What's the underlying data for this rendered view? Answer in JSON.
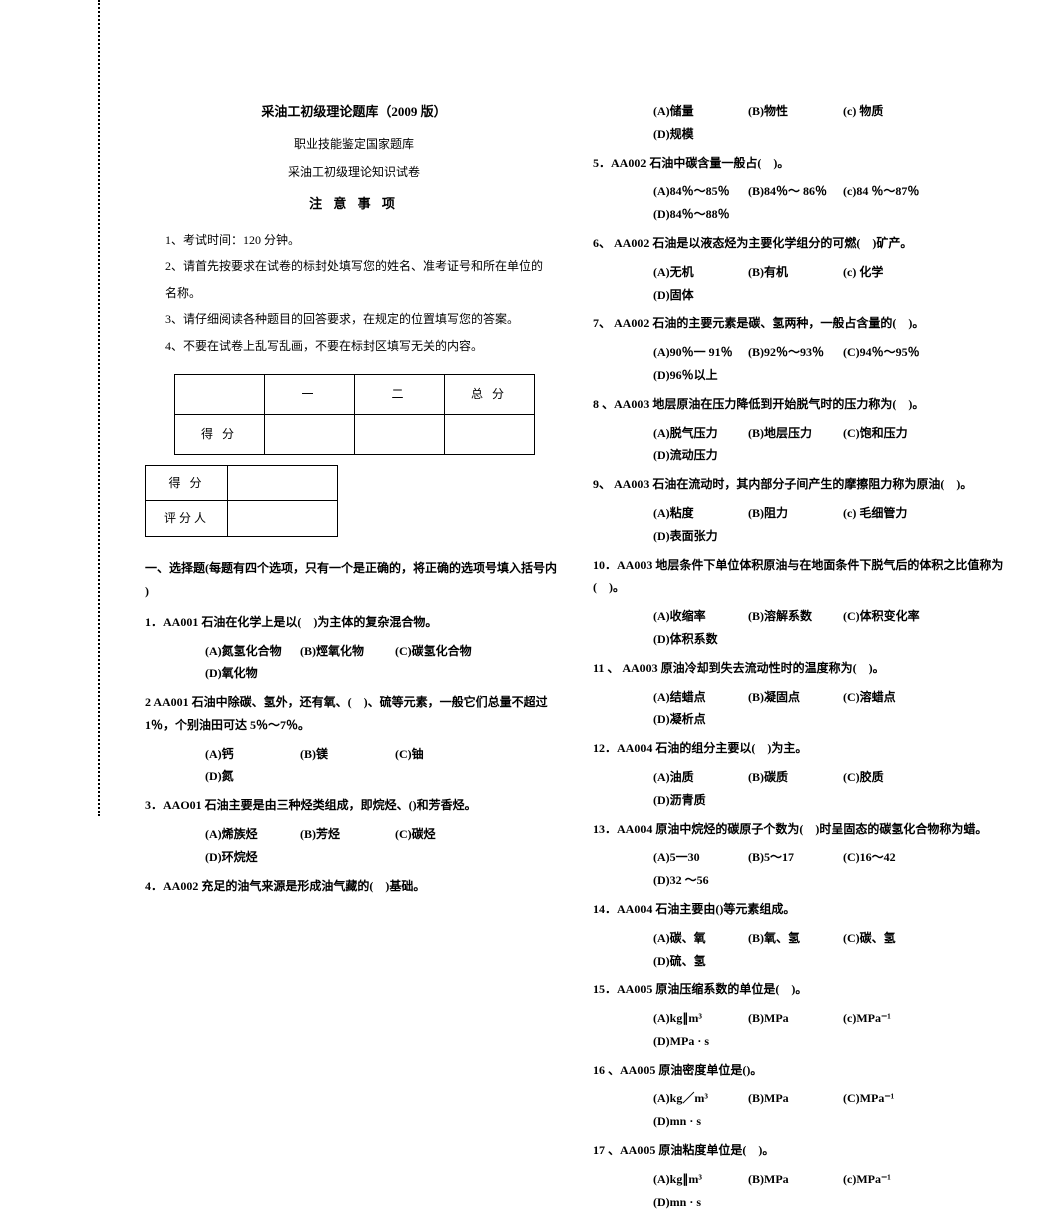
{
  "header": {
    "title": "采油工初级理论题库（2009 版）",
    "subtitle1": "职业技能鉴定国家题库",
    "subtitle2": "采油工初级理论知识试卷",
    "notice": "注 意 事 项"
  },
  "instructions": [
    "1、考试时间：120 分钟。",
    "2、请首先按要求在试卷的标封处填写您的姓名、准考证号和所在单位的名称。",
    "3、请仔细阅读各种题目的回答要求，在规定的位置填写您的答案。",
    "4、不要在试卷上乱写乱画，不要在标封区填写无关的内容。"
  ],
  "scoreTable": {
    "h1": "一",
    "h2": "二",
    "h3": "总 分",
    "r1": "得 分"
  },
  "smallTable": {
    "r1": "得 分",
    "r2": "评分人"
  },
  "sectionHead": "一、选择题(每题有四个选项，只有一个是正确的，将正确的选项号填入括号内 )",
  "leftQuestions": [
    {
      "q": "1．AA001 石油在化学上是以(　)为主体的复杂混合物。",
      "opts": [
        "(A)氮氢化合物",
        "(B)烴氧化物",
        "(C)碳氢化合物",
        "(D)氧化物"
      ]
    },
    {
      "q": "2 AA001 石油中除碳、氢外，还有氧、(　)、硫等元素，一般它们总量不超过 1％，个别油田可达 5％～7％。",
      "opts": [
        "(A)钙",
        "(B)镁",
        "(C)铀",
        "(D)氮"
      ]
    },
    {
      "q": "3．AAO01 石油主要是由三种烃类组成，即烷烃、()和芳香烃。",
      "opts": [
        "(A)烯族烃",
        "(B)芳烃",
        "(C)碳烃",
        "(D)环烷烃"
      ]
    },
    {
      "q": "4．AA002 充足的油气来源是形成油气藏的(　)基础。",
      "opts": []
    }
  ],
  "rightQuestions": [
    {
      "q": "",
      "opts": [
        "(A)储量",
        "(B)物性",
        "(c) 物质",
        "(D)规模"
      ]
    },
    {
      "q": "5．AA002 石油中碳含量一般占(　)。",
      "opts": [
        "(A)84％～85％",
        "(B)84％～ 86％",
        "(c)84 ％～87％",
        "(D)84％～88％"
      ]
    },
    {
      "q": "6、 AA002 石油是以液态烃为主要化学组分的可燃(　)矿产。",
      "opts": [
        "(A)无机",
        "(B)有机",
        "(c) 化学",
        "(D)固体"
      ]
    },
    {
      "q": "7、 AA002 石油的主要元素是碳、氢两种，一般占含量的(　)。",
      "opts": [
        "(A)90％一 91％",
        "(B)92％～93％",
        "(C)94％～95％",
        "(D)96％以上"
      ]
    },
    {
      "q": "8 、AA003 地层原油在压力降低到开始脱气时的压力称为(　)。",
      "opts": [
        "(A)脱气压力",
        "(B)地层压力",
        "(C)饱和压力",
        "(D)流动压力"
      ]
    },
    {
      "q": "9、 AA003 石油在流动时，其内部分子间产生的摩擦阻力称为原油(　)。",
      "opts": [
        "(A)粘度",
        "(B)阻力",
        "(c) 毛细管力",
        "(D)表面张力"
      ]
    },
    {
      "q": "10．AA003 地层条件下单位体积原油与在地面条件下脱气后的体积之比值称为(　)。",
      "opts": [
        "(A)收缩率",
        "(B)溶解系数",
        "(C)体积变化率",
        "(D)体积系数"
      ]
    },
    {
      "q": "11 、 AA003 原油冷却到失去流动性时的温度称为(　)。",
      "opts": [
        "(A)结蜡点",
        "(B)凝固点",
        "(C)溶蜡点",
        "(D)凝析点"
      ]
    },
    {
      "q": "12．AA004 石油的组分主要以(　)为主。",
      "opts": [
        "(A)油质",
        "(B)碳质",
        "(C)胶质",
        "(D)沥青质"
      ]
    },
    {
      "q": "13．AA004 原油中烷烃的碳原子个数为(　)时呈固态的碳氢化合物称为蜡。",
      "opts": [
        "(A)5一30",
        "(B)5～17",
        "(C)16～42",
        "(D)32 ～56"
      ]
    },
    {
      "q": "14．AA004 石油主要由()等元素组成。",
      "opts": [
        "(A)碳、氧",
        "(B)氧、氢",
        "(C)碳、氢",
        "(D)硫、氢"
      ]
    },
    {
      "q": "15．AA005 原油压缩系数的单位是(　)。",
      "opts": [
        "(A)kg∥m³",
        "(B)MPa",
        "(c)MPa⁻¹",
        "(D)MPa · s"
      ]
    },
    {
      "q": "16 、AA005 原油密度单位是()。",
      "opts": [
        "(A)kg／m³",
        "(B)MPa",
        "(C)MPa⁻¹",
        "(D)mn · s"
      ]
    },
    {
      "q": "17 、AA005 原油粘度单位是(　)。",
      "opts": [
        "(A)kg∥m³",
        "(B)MPa",
        "(c)MPa⁻¹",
        "(D)mn · s"
      ]
    }
  ]
}
